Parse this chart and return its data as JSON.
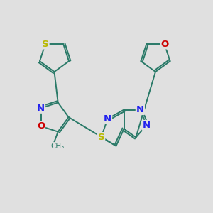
{
  "bg_color": "#e0e0e0",
  "bond_color": "#2a7a68",
  "bond_width": 1.4,
  "S_color": "#b8b800",
  "N_color": "#2222ee",
  "O_color": "#cc0000",
  "C_color": "#2a7a68",
  "figsize": [
    3.0,
    3.0
  ],
  "dpi": 100,
  "xlim": [
    0,
    10
  ],
  "ylim": [
    0,
    10
  ]
}
